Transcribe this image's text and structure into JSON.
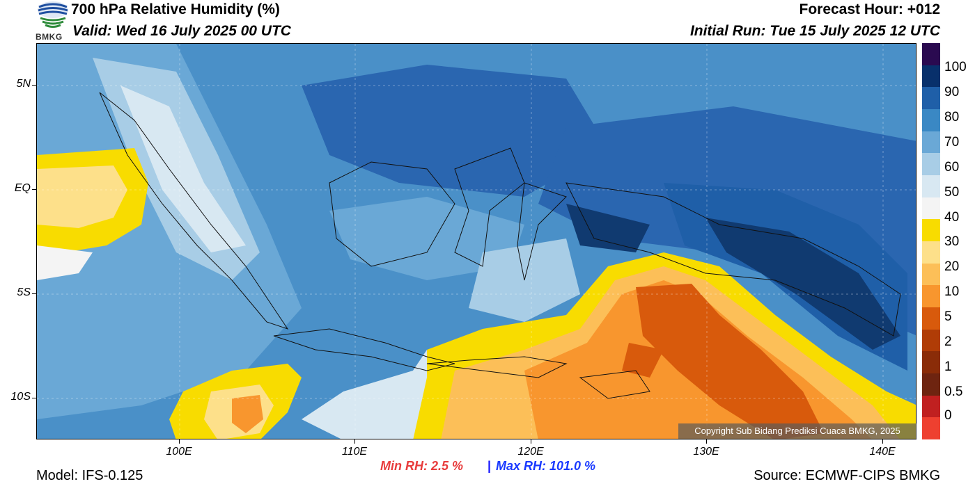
{
  "header": {
    "title": "700 hPa Relative Humidity (%)",
    "valid": "Valid: Wed 16 July 2025 00 UTC",
    "forecast_hour": "Forecast Hour: +012",
    "initial_run": "Initial Run: Tue 15 July 2025 12 UTC"
  },
  "logo": {
    "text": "BMKG",
    "colors": [
      "#1f4fa0",
      "#2e8b3a"
    ]
  },
  "map": {
    "lat_labels": [
      "5N",
      "EQ",
      "5S",
      "10S"
    ],
    "lon_labels": [
      "100E",
      "110E",
      "120E",
      "130E",
      "140E"
    ],
    "copyright": "Copyright Sub Bidang Prediksi Cuaca BMKG, 2025",
    "colors": {
      "ocean_blue": "#4a90c8",
      "dark_blue": "#2a66b0",
      "navy": "#103a70",
      "light_blue": "#9ec8e4",
      "dry_orange": "#f5a040",
      "dark_orange": "#d45a10",
      "yellow": "#f8dc00"
    }
  },
  "colorbar": {
    "labels": [
      "100",
      "90",
      "80",
      "70",
      "60",
      "50",
      "40",
      "30",
      "20",
      "10",
      "5",
      "2",
      "1",
      "0.5",
      "0"
    ],
    "colors": [
      "#2a0a50",
      "#08306b",
      "#1f5fa8",
      "#3a88c4",
      "#6aa8d6",
      "#a8cde6",
      "#d8e8f2",
      "#f4f4f4",
      "#f8dc00",
      "#fde08a",
      "#fcbf58",
      "#f8962e",
      "#d85a0c",
      "#b03c06",
      "#8a2c08",
      "#6e2410",
      "#c02020",
      "#ee4030"
    ]
  },
  "footer": {
    "min_rh": "Min RH:   2.5 %",
    "separator": "|",
    "max_rh": "Max RH: 101.0 %",
    "model": "Model: IFS-0.125",
    "source": "Source: ECMWF-CIPS BMKG"
  }
}
